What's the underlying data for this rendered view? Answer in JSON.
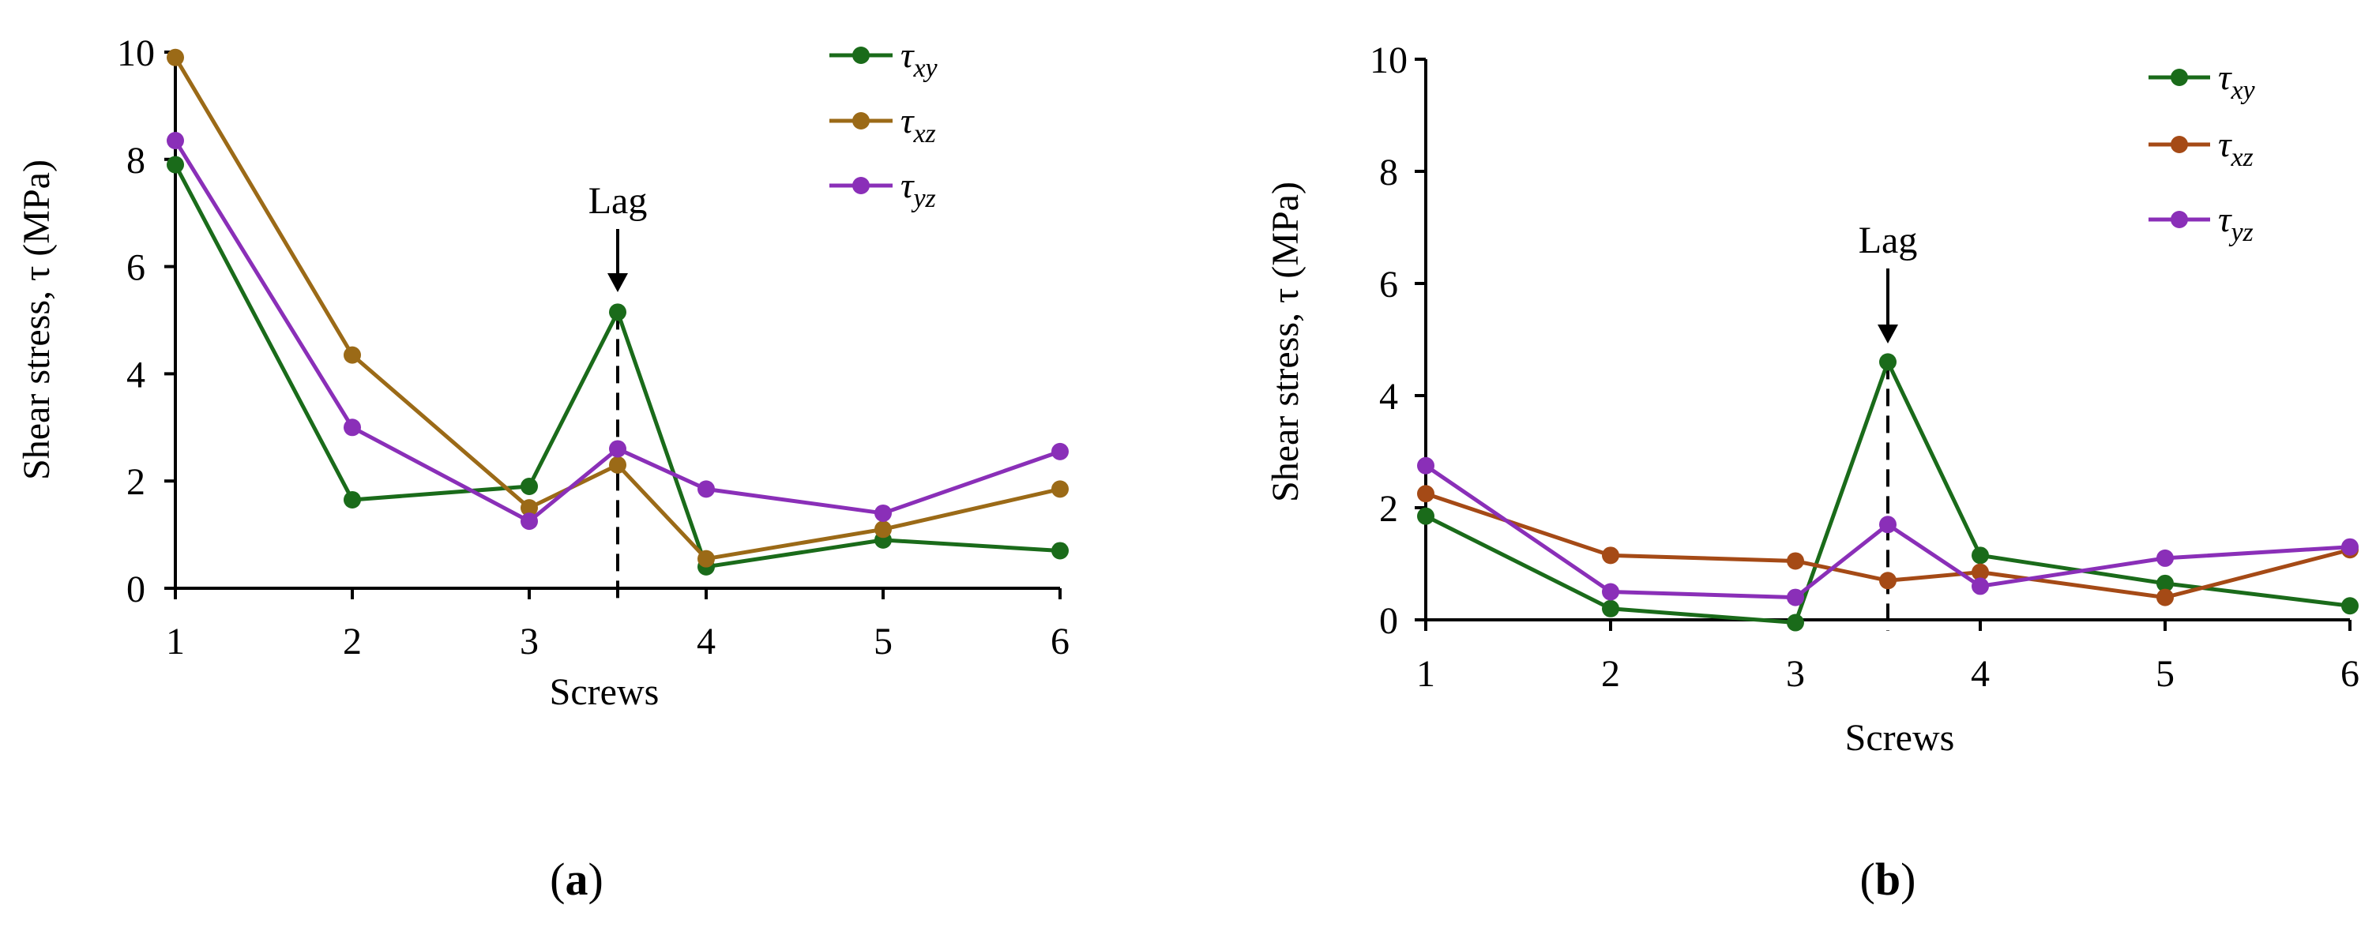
{
  "chart_data": [
    {
      "type": "line",
      "panel_label": "(a)",
      "panel_letter": "a",
      "xlabel": "Screws",
      "ylabel": "Shear stress,  τ  (MPa)",
      "categories": [
        "1",
        "2",
        "3",
        "4",
        "5",
        "6"
      ],
      "x": [
        1,
        2,
        3,
        4,
        5,
        6
      ],
      "xlim": [
        1,
        6
      ],
      "ylim": [
        0,
        10
      ],
      "yticks": [
        0,
        2,
        4,
        6,
        8,
        10
      ],
      "grid": false,
      "legend_position": "top-right",
      "annotation": {
        "text": "Lag",
        "x": 3.5
      },
      "series": [
        {
          "name": "τxy",
          "symbol": "τ",
          "subscript": "xy",
          "color": "#1a6b1a",
          "x": [
            1,
            2,
            3,
            3.5,
            4,
            5,
            6
          ],
          "values": [
            7.9,
            1.65,
            1.9,
            5.15,
            0.4,
            0.9,
            0.7
          ]
        },
        {
          "name": "τxz",
          "symbol": "τ",
          "subscript": "xz",
          "color": "#9b6a17",
          "x": [
            1,
            2,
            3,
            3.5,
            4,
            5,
            6
          ],
          "values": [
            9.9,
            4.35,
            1.5,
            2.3,
            0.55,
            1.1,
            1.85
          ]
        },
        {
          "name": "τyz",
          "symbol": "τ",
          "subscript": "yz",
          "color": "#8a2fb8",
          "x": [
            1,
            2,
            3,
            3.5,
            4,
            5,
            6
          ],
          "values": [
            8.35,
            3.0,
            1.25,
            2.6,
            1.85,
            1.4,
            2.55
          ]
        }
      ]
    },
    {
      "type": "line",
      "panel_label": "(b)",
      "panel_letter": "b",
      "xlabel": "Screws",
      "ylabel": "Shear stress,  τ  (MPa)",
      "categories": [
        "1",
        "2",
        "3",
        "4",
        "5",
        "6"
      ],
      "x": [
        1,
        2,
        3,
        4,
        5,
        6
      ],
      "xlim": [
        1,
        6
      ],
      "ylim": [
        0,
        10
      ],
      "yticks": [
        0,
        2,
        4,
        6,
        8,
        10
      ],
      "grid": false,
      "legend_position": "top-right",
      "annotation": {
        "text": "Lag",
        "x": 3.5
      },
      "series": [
        {
          "name": "τxy",
          "symbol": "τ",
          "subscript": "xy",
          "color": "#1a6b1a",
          "x": [
            1,
            2,
            3,
            3.5,
            4,
            5,
            6
          ],
          "values": [
            1.85,
            0.2,
            -0.05,
            4.6,
            1.15,
            0.65,
            0.25
          ]
        },
        {
          "name": "τxz",
          "symbol": "τ",
          "subscript": "xz",
          "color": "#a54a16",
          "x": [
            1,
            2,
            3,
            3.5,
            4,
            5,
            6
          ],
          "values": [
            2.25,
            1.15,
            1.05,
            0.7,
            0.85,
            0.4,
            1.25
          ]
        },
        {
          "name": "τyz",
          "symbol": "τ",
          "subscript": "yz",
          "color": "#8a2fb8",
          "x": [
            1,
            2,
            3,
            3.5,
            4,
            5,
            6
          ],
          "values": [
            2.75,
            0.5,
            0.4,
            1.7,
            0.6,
            1.1,
            1.3
          ]
        }
      ]
    }
  ]
}
